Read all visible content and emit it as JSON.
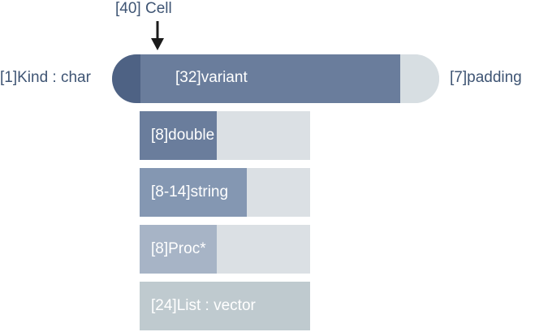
{
  "cell_label": "[40] Cell",
  "kind_label": "[1]Kind : char",
  "variant_label": "[32]variant",
  "padding_label": "[7]padding",
  "members": [
    {
      "label": "[8]double",
      "fill": 0.45
    },
    {
      "label": "[8-14]string",
      "fill": 0.63
    },
    {
      "label": "[8]Proc*",
      "fill": 0.45
    },
    {
      "label": "[24]List : vector",
      "fill": 1.0
    }
  ],
  "colors": {
    "text": "#3f5574",
    "kind": "#4e6284",
    "variant": "#6a7d9c",
    "padding": "#d7dee2",
    "member_track": "#dbe0e4",
    "double": "#6a7d9c",
    "string": "#8497b2",
    "proc": "#a7b4c6",
    "list": "#bfcacf",
    "arrow": "#1b1b1b"
  }
}
